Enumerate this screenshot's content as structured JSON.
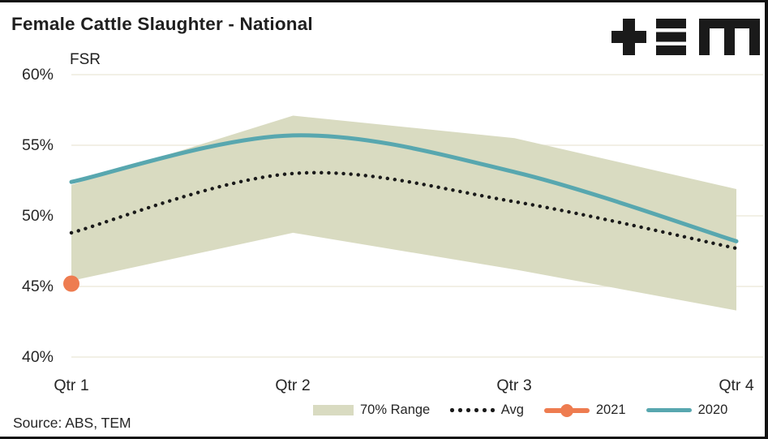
{
  "header": {
    "title": "Female Cattle Slaughter - National",
    "logo_name": "TEM",
    "logo_color": "#1a1a1a"
  },
  "source_note": "Source: ABS, TEM",
  "colors": {
    "background": "#ffffff",
    "range_band": "#d9dbc1",
    "avg_line": "#1a1a1a",
    "line_2021": "#ee7c50",
    "line_2020": "#58a7af",
    "gridline": "#eeebdd",
    "text": "#1f1f1f"
  },
  "chart_data": {
    "type": "line",
    "title": "Female Cattle Slaughter - National",
    "ylabel": "FSR",
    "xlabel": "",
    "categories": [
      "Qtr 1",
      "Qtr 2",
      "Qtr 3",
      "Qtr 4"
    ],
    "ytick_labels": [
      "60%",
      "55%",
      "50%",
      "45%",
      "40%"
    ],
    "yticks": [
      60,
      55,
      50,
      45,
      40
    ],
    "ylim": [
      40,
      60
    ],
    "grid": true,
    "legend_position": "bottom",
    "series": [
      {
        "name": "70% Range",
        "type": "band",
        "upper": [
          52.2,
          57.1,
          55.5,
          51.9
        ],
        "lower": [
          45.4,
          48.8,
          46.2,
          43.3
        ],
        "color": "#d9dbc1"
      },
      {
        "name": "Avg",
        "type": "dotted-line",
        "values": [
          48.8,
          53.0,
          51.0,
          47.7
        ],
        "color": "#1a1a1a"
      },
      {
        "name": "2021",
        "type": "point",
        "values": [
          45.2,
          null,
          null,
          null
        ],
        "color": "#ee7c50"
      },
      {
        "name": "2020",
        "type": "line",
        "values": [
          52.4,
          55.7,
          53.1,
          48.2
        ],
        "color": "#58a7af"
      }
    ]
  }
}
